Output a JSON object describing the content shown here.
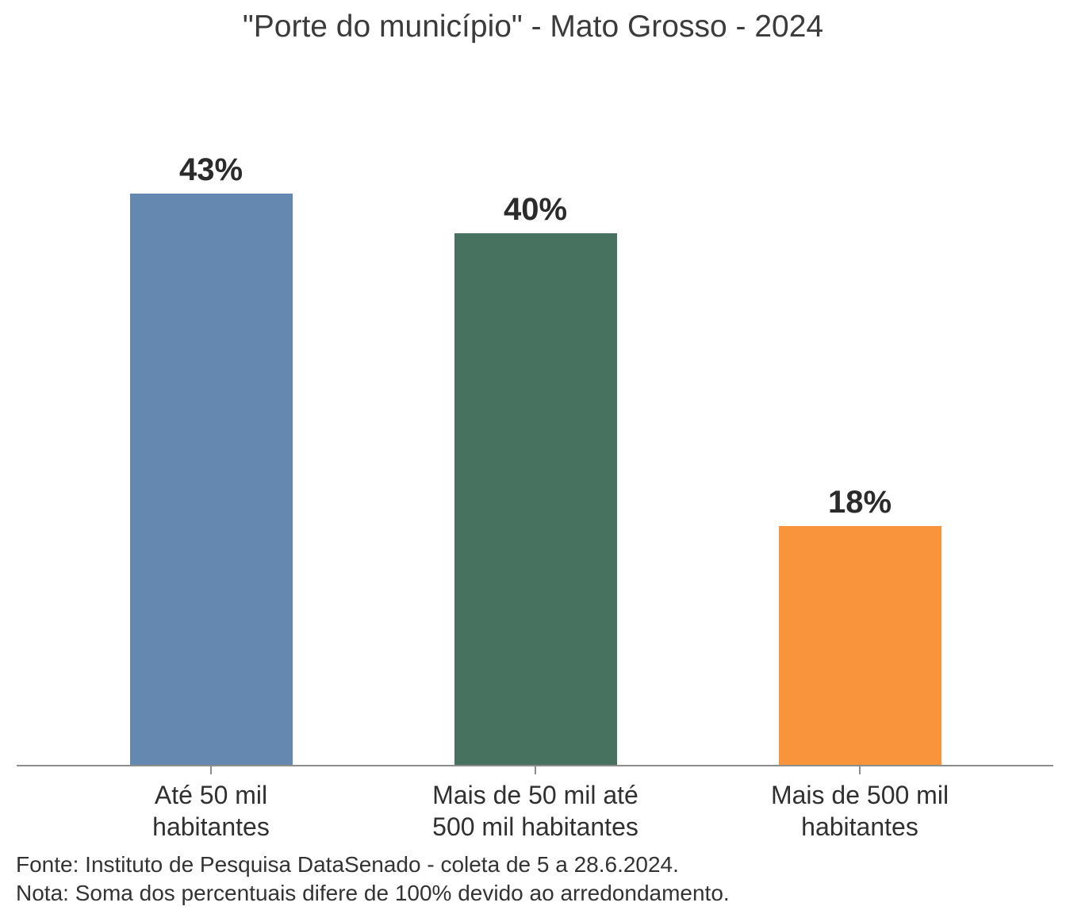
{
  "chart_data": {
    "type": "bar",
    "title": "\"Porte do município\" - Mato Grosso - 2024",
    "categories": [
      "Até 50 mil habitantes",
      "Mais de 50 mil até 500 mil habitantes",
      "Mais de 500 mil habitantes"
    ],
    "category_label_lines": [
      [
        "Até 50 mil",
        "habitantes"
      ],
      [
        "Mais de 50 mil até",
        "500 mil habitantes"
      ],
      [
        "Mais de 500 mil",
        "habitantes"
      ]
    ],
    "values": [
      43,
      40,
      18
    ],
    "value_labels": [
      "43%",
      "40%",
      "18%"
    ],
    "series_colors": [
      "#6588B1",
      "#47725F",
      "#F9943D"
    ],
    "xlabel": "",
    "ylabel": "",
    "ylim": [
      0,
      48
    ],
    "grid": false,
    "legend": false,
    "axis_color": "#8C8C8C"
  },
  "footer": {
    "source_line": "Fonte: Instituto de Pesquisa DataSenado - coleta de 5 a 28.6.2024.",
    "note_line": "Nota: Soma dos percentuais difere de 100% devido ao arredondamento."
  }
}
